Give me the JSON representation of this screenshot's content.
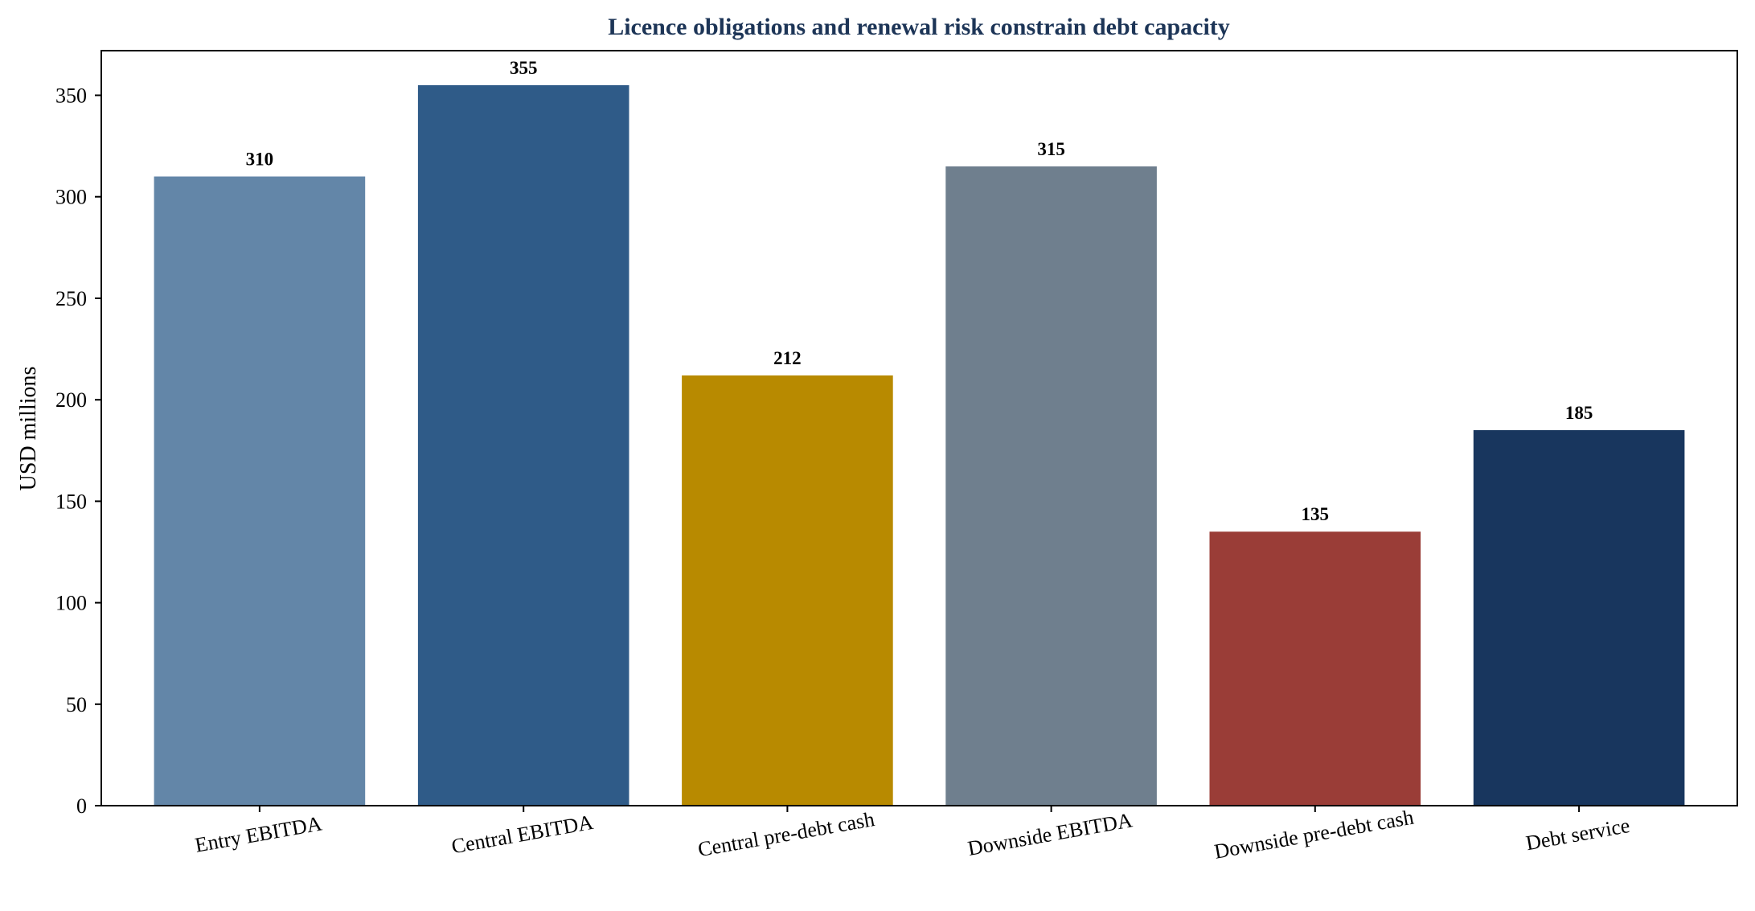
{
  "chart_data": {
    "type": "bar",
    "title": "Licence obligations and renewal risk constrain debt capacity",
    "xlabel": "",
    "ylabel": "USD millions",
    "categories": [
      "Entry EBITDA",
      "Central EBITDA",
      "Central pre-debt cash",
      "Downside EBITDA",
      "Downside pre-debt cash",
      "Debt service"
    ],
    "values": [
      310,
      355,
      212,
      315,
      135,
      185
    ],
    "data_labels": [
      "310",
      "355",
      "212",
      "315",
      "135",
      "185"
    ],
    "colors": [
      "#6386a8",
      "#2f5b88",
      "#b88a00",
      "#6f7f8e",
      "#9a3d37",
      "#18365e"
    ],
    "ylim": [
      0,
      372
    ],
    "yticks": [
      0,
      50,
      100,
      150,
      200,
      250,
      300,
      350
    ],
    "grid": false,
    "legend": "none",
    "title_color": "#1d3557"
  }
}
